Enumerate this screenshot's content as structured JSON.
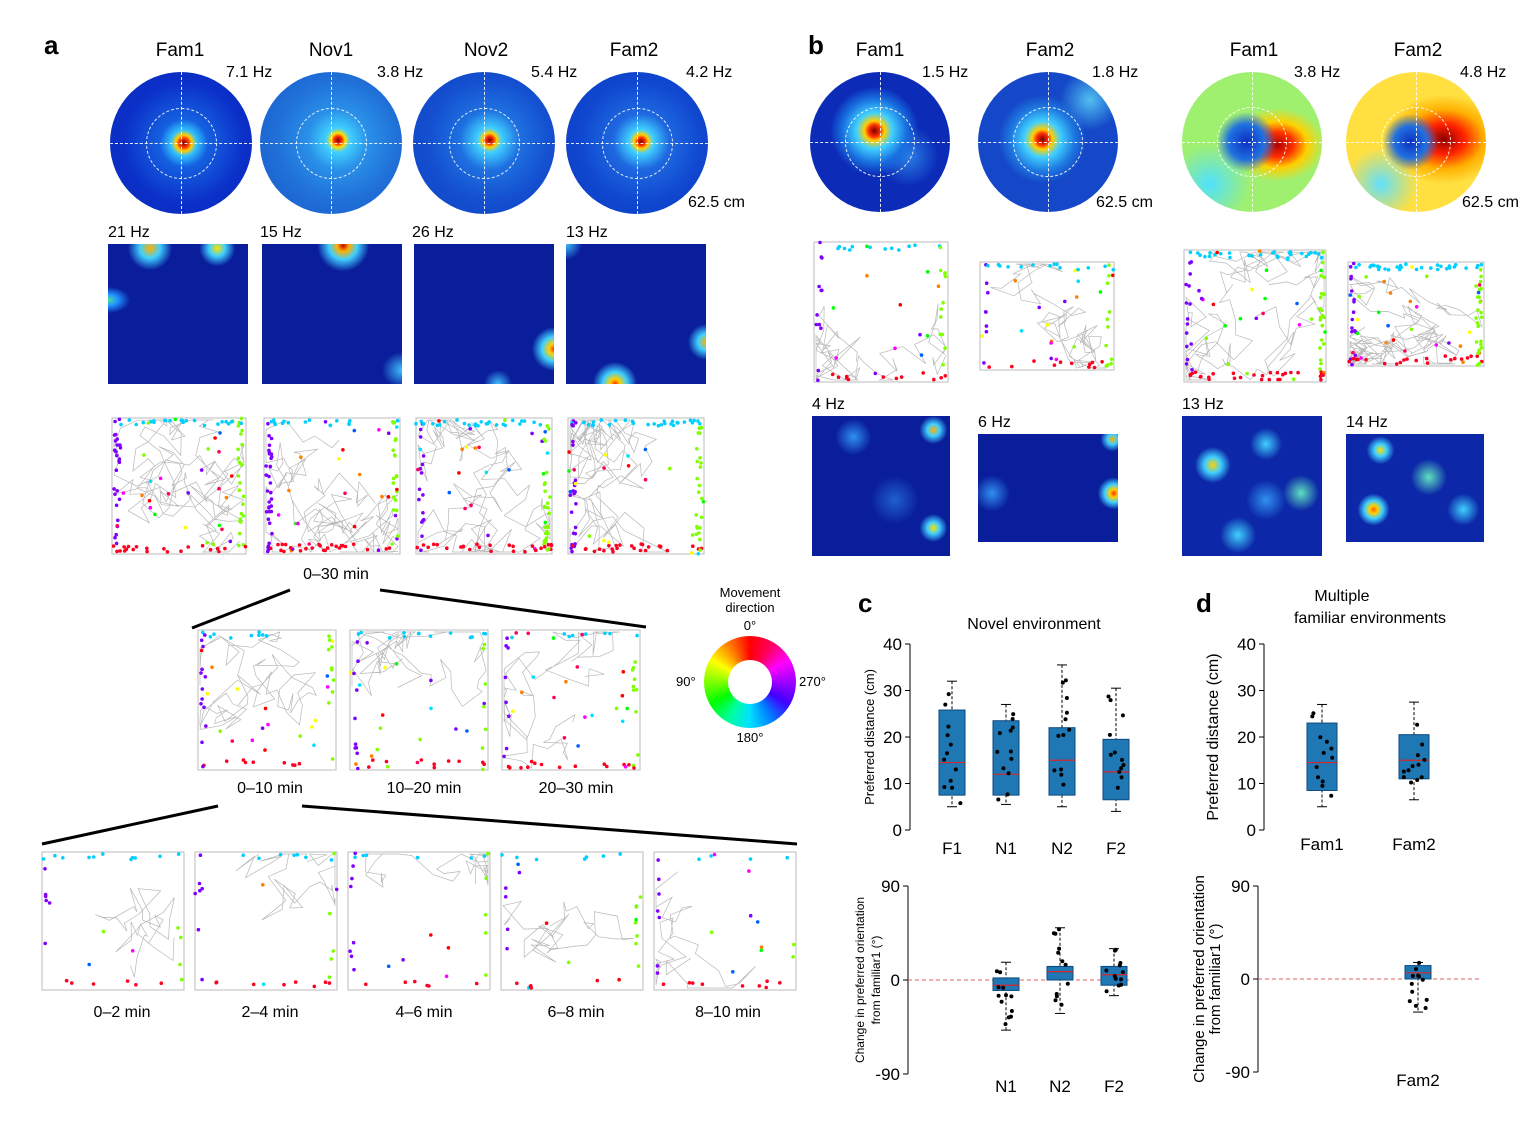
{
  "panels": {
    "a": "a",
    "b": "b",
    "c": "c",
    "d": "d"
  },
  "panel_a": {
    "polar_titles": [
      "Fam1",
      "Nov1",
      "Nov2",
      "Fam2"
    ],
    "polar_rates": [
      "7.1 Hz",
      "3.8 Hz",
      "5.4 Hz",
      "4.2 Hz"
    ],
    "scale": "62.5 cm",
    "heat_rates": [
      "21 Hz",
      "15 Hz",
      "26 Hz",
      "13 Hz"
    ],
    "session_label": "0–30 min",
    "sub_labels_10": [
      "0–10 min",
      "10–20 min",
      "20–30 min"
    ],
    "sub_labels_2": [
      "0–2 min",
      "2–4 min",
      "4–6 min",
      "6–8 min",
      "8–10 min"
    ],
    "legend": {
      "title_line1": "Movement",
      "title_line2": "direction",
      "deg0": "0°",
      "deg90": "90°",
      "deg180": "180°",
      "deg270": "270°"
    }
  },
  "panel_b": {
    "titles": [
      "Fam1",
      "Fam2",
      "Fam1",
      "Fam2"
    ],
    "polar_rates": [
      "1.5 Hz",
      "1.8 Hz",
      "3.8 Hz",
      "4.8 Hz"
    ],
    "scales": [
      "62.5 cm",
      "62.5 cm"
    ],
    "heat_rates": [
      "4 Hz",
      "6 Hz",
      "13 Hz",
      "14 Hz"
    ]
  },
  "colors": {
    "box": "#1f77b4",
    "median": "#d62728",
    "zero_line": "#e06060"
  },
  "chart_data": [
    {
      "type": "box",
      "id": "c-top",
      "title": "Novel environment",
      "ylabel": "Preferred distance (cm)",
      "categories": [
        "F1",
        "N1",
        "N2",
        "F2"
      ],
      "ylim": [
        0,
        40
      ],
      "yticks": [
        0,
        10,
        20,
        30,
        40
      ],
      "boxes": [
        {
          "q1": 7.5,
          "median": 14.5,
          "q3": 25.8,
          "min": 5,
          "max": 32
        },
        {
          "q1": 7.5,
          "median": 12,
          "q3": 23.5,
          "min": 5.5,
          "max": 27
        },
        {
          "q1": 7.5,
          "median": 15,
          "q3": 22,
          "min": 5,
          "max": 35.5
        },
        {
          "q1": 6.5,
          "median": 12.5,
          "q3": 19.5,
          "min": 4,
          "max": 30.5
        }
      ]
    },
    {
      "type": "box",
      "id": "c-bottom",
      "ylabel_line1": "Change in preferred orientation",
      "ylabel_line2": "from familiar1 (°)",
      "categories": [
        "N1",
        "N2",
        "F2"
      ],
      "ylim": [
        -90,
        90
      ],
      "yticks": [
        -90,
        0,
        90
      ],
      "boxes": [
        {
          "q1": -10,
          "median": -5,
          "q3": 2,
          "min": -48,
          "max": 17
        },
        {
          "q1": 0,
          "median": 8,
          "q3": 13,
          "min": -32,
          "max": 50
        },
        {
          "q1": -5,
          "median": 5,
          "q3": 13,
          "min": -15,
          "max": 30
        }
      ]
    },
    {
      "type": "box",
      "id": "d-top",
      "title_line1": "Multiple",
      "title_line2": "familiar environments",
      "ylabel": "Preferred distance (cm)",
      "categories": [
        "Fam1",
        "Fam2"
      ],
      "ylim": [
        0,
        40
      ],
      "yticks": [
        0,
        10,
        20,
        30,
        40
      ],
      "boxes": [
        {
          "q1": 8.5,
          "median": 14.5,
          "q3": 23,
          "min": 5,
          "max": 27
        },
        {
          "q1": 11,
          "median": 15,
          "q3": 20.5,
          "min": 6.5,
          "max": 27.5
        }
      ]
    },
    {
      "type": "box",
      "id": "d-bottom",
      "ylabel_line1": "Change in preferred orientation",
      "ylabel_line2": "from familiar1 (°)",
      "categories": [
        "Fam2"
      ],
      "ylim": [
        -90,
        90
      ],
      "yticks": [
        -90,
        0,
        90
      ],
      "boxes": [
        {
          "q1": 0,
          "median": 6,
          "q3": 13,
          "min": -32,
          "max": 16
        }
      ]
    }
  ]
}
